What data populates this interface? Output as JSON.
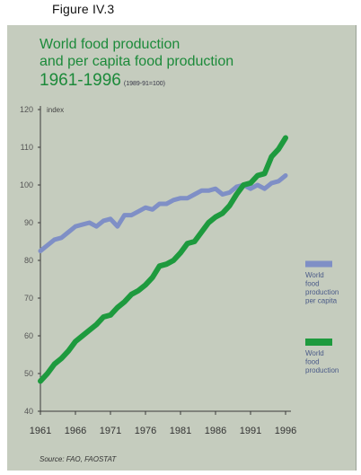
{
  "figure_label": "Figure IV.3",
  "chart_data": {
    "type": "line",
    "title_line1": "World food production",
    "title_line2": "and per capita food production",
    "title_line3": "1961-1996",
    "title_note": "(1989-91=100)",
    "ylabel": "index",
    "ylim": [
      40,
      120
    ],
    "yticks": [
      40,
      50,
      60,
      70,
      80,
      90,
      100,
      110,
      120
    ],
    "xlim": [
      1961,
      1996
    ],
    "xticks": [
      1961,
      1966,
      1971,
      1976,
      1981,
      1986,
      1991,
      1996
    ],
    "grid": false,
    "legend_position": "right",
    "x": [
      1961,
      1962,
      1963,
      1964,
      1965,
      1966,
      1967,
      1968,
      1969,
      1970,
      1971,
      1972,
      1973,
      1974,
      1975,
      1976,
      1977,
      1978,
      1979,
      1980,
      1981,
      1982,
      1983,
      1984,
      1985,
      1986,
      1987,
      1988,
      1989,
      1990,
      1991,
      1992,
      1993,
      1994,
      1995,
      1996
    ],
    "series": [
      {
        "name_lines": [
          "World",
          "food",
          "production",
          "per capita"
        ],
        "color": "#7f8fc6",
        "values": [
          82.5,
          84,
          85.5,
          86,
          87.5,
          89,
          89.5,
          90,
          89,
          90.5,
          91,
          89,
          92,
          92,
          93,
          94,
          93.5,
          95,
          95,
          96,
          96.5,
          96.5,
          97.5,
          98.5,
          98.5,
          99,
          97.5,
          98,
          99.5,
          100,
          99,
          100,
          99,
          100.5,
          101,
          102.5
        ]
      },
      {
        "name_lines": [
          "World",
          "food",
          "production"
        ],
        "color": "#1e9a3e",
        "values": [
          48,
          50,
          52.5,
          54,
          56,
          58.5,
          60,
          61.5,
          63,
          65,
          65.5,
          67.5,
          69,
          71,
          72,
          73.5,
          75.5,
          78.5,
          79,
          80,
          82,
          84.5,
          85,
          87.5,
          90,
          91.5,
          92.5,
          94.5,
          97.5,
          100,
          100.5,
          102.5,
          103,
          107.5,
          109.5,
          112.5
        ]
      }
    ]
  },
  "source": "Source: FAO, FAOSTAT"
}
